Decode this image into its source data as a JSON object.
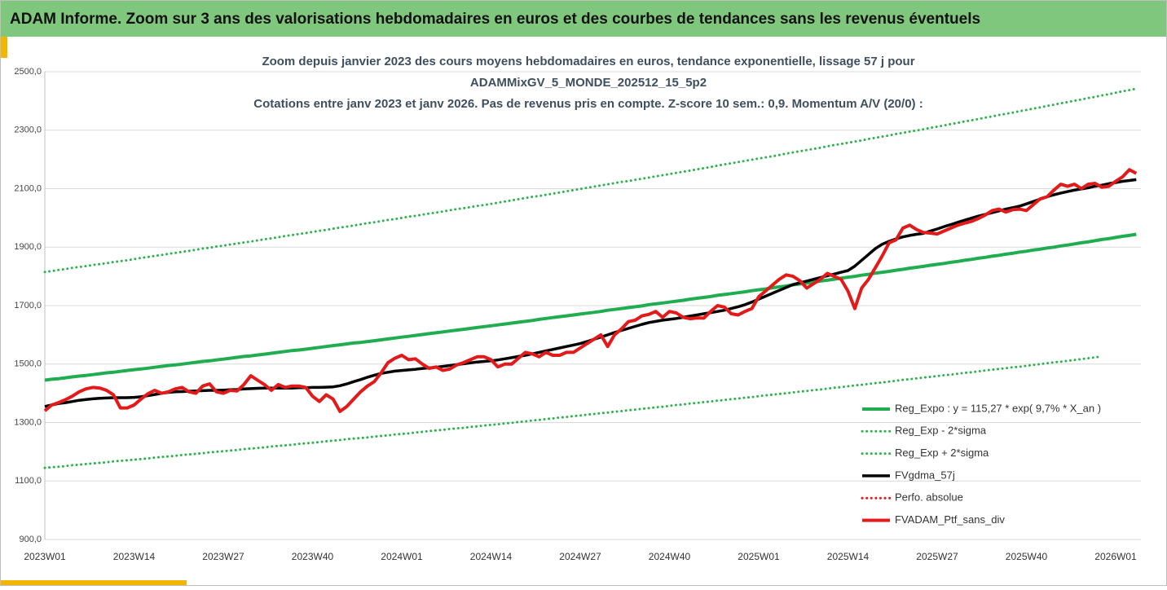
{
  "page_title": "ADAM Informe. Zoom sur 3 ans des valorisations hebdomadaires en euros et des courbes de tendances sans les revenus éventuels",
  "chart_data": {
    "type": "line",
    "title_lines": [
      "Zoom depuis janvier 2023 des cours moyens hebdomadaires  en euros, tendance exponentielle, lissage 57 j pour",
      "ADAMMixGV_5_MONDE_202512_15_5p2",
      "Cotations  entre janv 2023 et janv 2026. Pas de revenus pris en compte. Z-score 10 sem.: 0,9. Momentum A/V (20/0) :"
    ],
    "categories": [
      "2023W01",
      null,
      null,
      null,
      null,
      null,
      null,
      null,
      null,
      null,
      null,
      null,
      null,
      "2023W14",
      null,
      null,
      null,
      null,
      null,
      null,
      null,
      null,
      null,
      null,
      null,
      null,
      "2023W27",
      null,
      null,
      null,
      null,
      null,
      null,
      null,
      null,
      null,
      null,
      null,
      null,
      "2023W40",
      null,
      null,
      null,
      null,
      null,
      null,
      null,
      null,
      null,
      null,
      null,
      null,
      "2024W01",
      null,
      null,
      null,
      null,
      null,
      null,
      null,
      null,
      null,
      null,
      null,
      null,
      "2024W14",
      null,
      null,
      null,
      null,
      null,
      null,
      null,
      null,
      null,
      null,
      null,
      null,
      "2024W27",
      null,
      null,
      null,
      null,
      null,
      null,
      null,
      null,
      null,
      null,
      null,
      null,
      "2024W40",
      null,
      null,
      null,
      null,
      null,
      null,
      null,
      null,
      null,
      null,
      null,
      null,
      "2025W01",
      null,
      null,
      null,
      null,
      null,
      null,
      null,
      null,
      null,
      null,
      null,
      null,
      "2025W14",
      null,
      null,
      null,
      null,
      null,
      null,
      null,
      null,
      null,
      null,
      null,
      null,
      "2025W27",
      null,
      null,
      null,
      null,
      null,
      null,
      null,
      null,
      null,
      null,
      null,
      null,
      "2025W40",
      null,
      null,
      null,
      null,
      null,
      null,
      null,
      null,
      null,
      null,
      null,
      null,
      "2026W01",
      null,
      null,
      null
    ],
    "ylim": [
      900,
      2500
    ],
    "yticks": [
      {
        "value": 900,
        "label": "900,0"
      },
      {
        "value": 1100,
        "label": "1100,0"
      },
      {
        "value": 1300,
        "label": "1300,0"
      },
      {
        "value": 1500,
        "label": "1500,0"
      },
      {
        "value": 1700,
        "label": "1700,0"
      },
      {
        "value": 1900,
        "label": "1900,0"
      },
      {
        "value": 2100,
        "label": "2100,0"
      },
      {
        "value": 2300,
        "label": "2300,0"
      },
      {
        "value": 2500,
        "label": "2500,0"
      }
    ],
    "grid": true,
    "legend": "bottom-right",
    "series": [
      {
        "name": "Reg_Expo : y = 115,27 * exp( 9,7% *  X_an )",
        "color": "#20ad50",
        "style": "solid",
        "width": 4,
        "values": [
          1445,
          1448,
          1450,
          1453,
          1456,
          1459,
          1461,
          1464,
          1467,
          1470,
          1472,
          1475,
          1478,
          1481,
          1483,
          1486,
          1489,
          1492,
          1495,
          1497,
          1500,
          1503,
          1506,
          1509,
          1511,
          1514,
          1517,
          1520,
          1523,
          1526,
          1528,
          1531,
          1534,
          1537,
          1540,
          1543,
          1546,
          1548,
          1551,
          1554,
          1557,
          1560,
          1563,
          1566,
          1569,
          1572,
          1574,
          1577,
          1580,
          1583,
          1586,
          1589,
          1592,
          1595,
          1598,
          1601,
          1604,
          1607,
          1610,
          1613,
          1616,
          1619,
          1622,
          1625,
          1628,
          1631,
          1634,
          1637,
          1640,
          1643,
          1646,
          1649,
          1653,
          1656,
          1659,
          1662,
          1665,
          1668,
          1671,
          1674,
          1677,
          1680,
          1684,
          1687,
          1690,
          1693,
          1696,
          1699,
          1703,
          1706,
          1709,
          1712,
          1715,
          1718,
          1722,
          1725,
          1728,
          1731,
          1735,
          1738,
          1741,
          1744,
          1747,
          1751,
          1754,
          1757,
          1761,
          1764,
          1767,
          1771,
          1774,
          1777,
          1780,
          1784,
          1787,
          1790,
          1794,
          1797,
          1800,
          1804,
          1807,
          1811,
          1814,
          1817,
          1821,
          1824,
          1828,
          1831,
          1834,
          1838,
          1841,
          1844,
          1848,
          1851,
          1855,
          1858,
          1862,
          1865,
          1869,
          1872,
          1876,
          1879,
          1883,
          1886,
          1890,
          1893,
          1897,
          1900,
          1904,
          1907,
          1911,
          1915,
          1918,
          1922,
          1926,
          1929,
          1933,
          1937,
          1940,
          1944
        ]
      },
      {
        "name": "Reg_Exp - 2*sigma",
        "color": "#2db24e",
        "style": "dotted",
        "width": 3,
        "values": [
          1145,
          1147,
          1149,
          1151,
          1154,
          1156,
          1158,
          1160,
          1162,
          1164,
          1167,
          1169,
          1171,
          1173,
          1175,
          1177,
          1180,
          1182,
          1184,
          1186,
          1189,
          1191,
          1193,
          1195,
          1198,
          1200,
          1202,
          1204,
          1206,
          1209,
          1211,
          1213,
          1215,
          1218,
          1220,
          1222,
          1224,
          1227,
          1229,
          1231,
          1233,
          1236,
          1238,
          1240,
          1243,
          1245,
          1247,
          1249,
          1252,
          1254,
          1256,
          1259,
          1261,
          1263,
          1266,
          1268,
          1271,
          1273,
          1275,
          1278,
          1280,
          1282,
          1285,
          1287,
          1290,
          1292,
          1294,
          1297,
          1299,
          1302,
          1304,
          1307,
          1309,
          1312,
          1314,
          1317,
          1319,
          1322,
          1324,
          1327,
          1329,
          1332,
          1334,
          1337,
          1339,
          1342,
          1344,
          1347,
          1349,
          1352,
          1354,
          1357,
          1360,
          1362,
          1365,
          1367,
          1370,
          1372,
          1375,
          1377,
          1380,
          1382,
          1385,
          1387,
          1390,
          1393,
          1395,
          1398,
          1400,
          1403,
          1406,
          1408,
          1411,
          1413,
          1416,
          1419,
          1421,
          1424,
          1427,
          1429,
          1432,
          1435,
          1437,
          1440,
          1443,
          1446,
          1448,
          1451,
          1454,
          1456,
          1459,
          1462,
          1464,
          1467,
          1470,
          1472,
          1475,
          1478,
          1481,
          1483,
          1486,
          1489,
          1491,
          1494,
          1497,
          1500,
          1503,
          1506,
          1508,
          1511,
          1514,
          1517,
          1520,
          1523,
          1526,
          null,
          null,
          null,
          null,
          null
        ]
      },
      {
        "name": "Reg_Exp + 2*sigma",
        "color": "#2db24e",
        "style": "dotted",
        "width": 3,
        "values": [
          1815,
          1818,
          1822,
          1825,
          1829,
          1832,
          1835,
          1839,
          1842,
          1845,
          1849,
          1852,
          1855,
          1859,
          1863,
          1866,
          1870,
          1873,
          1877,
          1880,
          1884,
          1887,
          1891,
          1895,
          1898,
          1902,
          1905,
          1909,
          1912,
          1916,
          1919,
          1923,
          1927,
          1930,
          1934,
          1938,
          1941,
          1945,
          1948,
          1952,
          1956,
          1959,
          1963,
          1967,
          1970,
          1974,
          1978,
          1982,
          1985,
          1989,
          1993,
          1996,
          2000,
          2004,
          2007,
          2011,
          2015,
          2018,
          2022,
          2026,
          2030,
          2033,
          2037,
          2041,
          2044,
          2048,
          2052,
          2056,
          2060,
          2064,
          2068,
          2072,
          2075,
          2079,
          2083,
          2087,
          2091,
          2095,
          2099,
          2103,
          2107,
          2111,
          2115,
          2119,
          2123,
          2126,
          2130,
          2134,
          2138,
          2142,
          2146,
          2150,
          2154,
          2158,
          2162,
          2166,
          2170,
          2174,
          2179,
          2183,
          2187,
          2191,
          2195,
          2199,
          2203,
          2207,
          2211,
          2215,
          2220,
          2224,
          2228,
          2232,
          2236,
          2240,
          2245,
          2249,
          2253,
          2257,
          2261,
          2265,
          2270,
          2274,
          2278,
          2282,
          2287,
          2291,
          2295,
          2299,
          2303,
          2308,
          2312,
          2316,
          2321,
          2325,
          2330,
          2334,
          2338,
          2343,
          2347,
          2352,
          2356,
          2360,
          2365,
          2369,
          2374,
          2378,
          2383,
          2387,
          2392,
          2396,
          2401,
          2405,
          2410,
          2414,
          2419,
          2423,
          2428,
          2433,
          2437,
          2442
        ]
      },
      {
        "name": "FVgdma_57j",
        "color": "#000000",
        "style": "solid",
        "width": 3.5,
        "values": [
          1355,
          1360,
          1365,
          1368,
          1372,
          1376,
          1379,
          1381,
          1383,
          1384,
          1385,
          1385,
          1385,
          1386,
          1388,
          1392,
          1396,
          1400,
          1403,
          1405,
          1406,
          1407,
          1408,
          1409,
          1410,
          1410,
          1411,
          1412,
          1413,
          1415,
          1416,
          1417,
          1418,
          1418,
          1418,
          1418,
          1418,
          1419,
          1419,
          1420,
          1420,
          1421,
          1422,
          1426,
          1432,
          1440,
          1447,
          1455,
          1462,
          1468,
          1472,
          1476,
          1478,
          1480,
          1482,
          1485,
          1487,
          1489,
          1492,
          1495,
          1498,
          1501,
          1504,
          1507,
          1509,
          1511,
          1514,
          1518,
          1522,
          1526,
          1530,
          1535,
          1540,
          1545,
          1550,
          1555,
          1560,
          1565,
          1570,
          1577,
          1585,
          1592,
          1600,
          1608,
          1615,
          1622,
          1629,
          1636,
          1642,
          1646,
          1650,
          1653,
          1656,
          1660,
          1664,
          1668,
          1672,
          1676,
          1680,
          1684,
          1690,
          1696,
          1703,
          1712,
          1722,
          1732,
          1742,
          1752,
          1762,
          1772,
          1778,
          1784,
          1790,
          1796,
          1802,
          1808,
          1814,
          1820,
          1835,
          1855,
          1875,
          1895,
          1910,
          1920,
          1928,
          1935,
          1940,
          1944,
          1947,
          1955,
          1962,
          1970,
          1977,
          1985,
          1992,
          1999,
          2006,
          2012,
          2018,
          2024,
          2030,
          2035,
          2040,
          2048,
          2056,
          2064,
          2072,
          2079,
          2085,
          2090,
          2095,
          2099,
          2103,
          2108,
          2112,
          2117,
          2121,
          2125,
          2128,
          2131
        ]
      },
      {
        "name": "Perfo. absolue",
        "color": "#e31a1a",
        "style": "dotted",
        "width": 3,
        "values": [
          null,
          null,
          null,
          null,
          null,
          null,
          null,
          null,
          null,
          null,
          null,
          null,
          null,
          null,
          null,
          null,
          null,
          null,
          null,
          null,
          null,
          null,
          null,
          null,
          null,
          null,
          null,
          null,
          null,
          null,
          null,
          null,
          null,
          null,
          null,
          null,
          null,
          null,
          null,
          null,
          null,
          null,
          null,
          null,
          null,
          null,
          null,
          null,
          null,
          null,
          null,
          null,
          null,
          null,
          null,
          null,
          null,
          null,
          null,
          null,
          null,
          null,
          null,
          null,
          null,
          null,
          null,
          null,
          null,
          null,
          null,
          null,
          null,
          null,
          null,
          null,
          null,
          null,
          null,
          null,
          null,
          null,
          null,
          null,
          null,
          null,
          null,
          null,
          null,
          null,
          null,
          null,
          null,
          null,
          null,
          null,
          null,
          null,
          null,
          null,
          null,
          null,
          null,
          null,
          null,
          null,
          null,
          null,
          null,
          null,
          null,
          null,
          null,
          null,
          null,
          null,
          null,
          null,
          null,
          null,
          null,
          null,
          null,
          null,
          null,
          null,
          null,
          null,
          null,
          null,
          null,
          null,
          null,
          null,
          null,
          null,
          null,
          null,
          null,
          null,
          null,
          null,
          null,
          null,
          null,
          null,
          null,
          null,
          null,
          null,
          null,
          null,
          null,
          null,
          null,
          null,
          null,
          null,
          null,
          null
        ]
      },
      {
        "name": "FVADAM_Ptf_sans_div",
        "color": "#e31a1a",
        "style": "solid",
        "width": 4,
        "values": [
          1340,
          1360,
          1368,
          1378,
          1390,
          1405,
          1415,
          1420,
          1418,
          1410,
          1395,
          1350,
          1350,
          1360,
          1380,
          1398,
          1410,
          1400,
          1405,
          1415,
          1420,
          1405,
          1400,
          1425,
          1432,
          1405,
          1400,
          1410,
          1408,
          1430,
          1460,
          1445,
          1430,
          1410,
          1430,
          1420,
          1425,
          1425,
          1420,
          1390,
          1372,
          1395,
          1380,
          1338,
          1355,
          1380,
          1405,
          1425,
          1440,
          1470,
          1505,
          1520,
          1530,
          1515,
          1518,
          1500,
          1485,
          1490,
          1478,
          1483,
          1497,
          1505,
          1515,
          1525,
          1525,
          1515,
          1490,
          1500,
          1500,
          1520,
          1540,
          1535,
          1525,
          1540,
          1530,
          1530,
          1540,
          1540,
          1555,
          1570,
          1585,
          1600,
          1560,
          1600,
          1620,
          1645,
          1650,
          1665,
          1670,
          1680,
          1660,
          1680,
          1675,
          1660,
          1655,
          1658,
          1657,
          1680,
          1700,
          1695,
          1672,
          1668,
          1680,
          1690,
          1730,
          1750,
          1770,
          1790,
          1805,
          1800,
          1785,
          1760,
          1775,
          1790,
          1810,
          1800,
          1790,
          1750,
          1690,
          1760,
          1790,
          1830,
          1870,
          1915,
          1925,
          1965,
          1975,
          1960,
          1950,
          1948,
          1945,
          1955,
          1965,
          1975,
          1982,
          1988,
          1998,
          2010,
          2025,
          2030,
          2020,
          2028,
          2030,
          2025,
          2045,
          2065,
          2072,
          2095,
          2115,
          2108,
          2115,
          2100,
          2115,
          2118,
          2105,
          2108,
          2125,
          2140,
          2165,
          2152
        ]
      }
    ]
  }
}
